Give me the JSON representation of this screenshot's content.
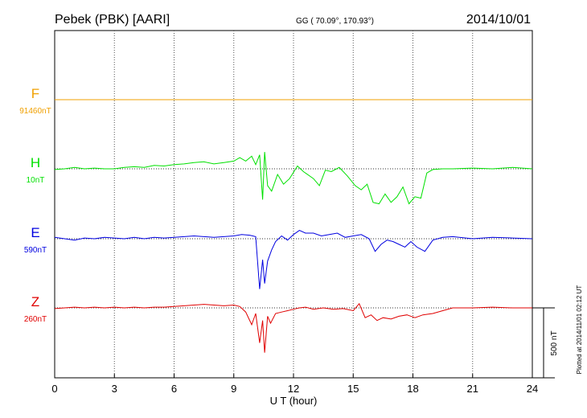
{
  "header": {
    "station": "Pebek (PBK)  [AARI]",
    "coords": "GG ( 70.09°, 170.93°)",
    "date": "2014/10/01"
  },
  "footer": {
    "plotted_note": "Plotted at 2014/11/01 02:12 UT",
    "scale_label": "500 nT"
  },
  "chart_data": {
    "type": "line",
    "title": "Pebek (PBK)  [AARI]",
    "xlabel": "U T (hour)",
    "ylabel": "",
    "xlim": [
      0,
      24
    ],
    "x_ticks": [
      "0",
      "3",
      "6",
      "9",
      "12",
      "15",
      "18",
      "21",
      "24"
    ],
    "scale_bar_nT": 500,
    "grid": true,
    "series": [
      {
        "name": "F",
        "baseline_label": "91460nT",
        "color": "#f0a000",
        "x": [
          0,
          2,
          4,
          6,
          8,
          10,
          12,
          14,
          16,
          18,
          20,
          22,
          24
        ],
        "y": [
          0,
          0,
          0,
          0,
          0,
          0,
          0,
          0,
          0,
          0,
          0,
          0,
          0
        ]
      },
      {
        "name": "H",
        "baseline_label": "10nT",
        "color": "#00e000",
        "x": [
          0,
          0.5,
          1,
          1.5,
          2,
          2.5,
          3,
          3.5,
          4,
          4.5,
          5,
          5.5,
          6,
          6.5,
          7,
          7.5,
          8,
          8.5,
          9,
          9.3,
          9.6,
          9.9,
          10.1,
          10.3,
          10.45,
          10.55,
          10.7,
          10.9,
          11.2,
          11.5,
          11.8,
          12.2,
          12.5,
          13,
          13.3,
          13.6,
          13.9,
          14.3,
          14.7,
          15.1,
          15.4,
          15.7,
          16,
          16.3,
          16.6,
          16.9,
          17.2,
          17.5,
          17.8,
          18.1,
          18.4,
          18.7,
          19,
          19.5,
          20,
          21,
          22,
          23,
          24
        ],
        "y": [
          -5,
          0,
          10,
          0,
          5,
          0,
          0,
          10,
          15,
          10,
          25,
          20,
          30,
          35,
          45,
          50,
          35,
          45,
          55,
          80,
          55,
          90,
          30,
          100,
          -220,
          120,
          -120,
          -160,
          -40,
          -110,
          -70,
          20,
          -20,
          -70,
          -120,
          -10,
          -20,
          10,
          -50,
          -120,
          -150,
          -110,
          -240,
          -250,
          -180,
          -240,
          -200,
          -130,
          -250,
          -200,
          -210,
          -30,
          -5,
          0,
          0,
          5,
          0,
          10,
          0
        ]
      },
      {
        "name": "E",
        "baseline_label": "590nT",
        "color": "#0000e0",
        "x": [
          0,
          0.5,
          1,
          1.5,
          2,
          2.5,
          3,
          3.5,
          4,
          4.5,
          5,
          5.5,
          6,
          6.5,
          7,
          7.5,
          8,
          8.5,
          9,
          9.4,
          9.8,
          10.1,
          10.3,
          10.45,
          10.55,
          10.7,
          10.9,
          11.1,
          11.4,
          11.7,
          12,
          12.3,
          12.6,
          13,
          13.4,
          13.8,
          14.2,
          14.6,
          15,
          15.4,
          15.8,
          16.1,
          16.4,
          16.7,
          17,
          17.3,
          17.6,
          17.9,
          18.2,
          18.6,
          19,
          19.5,
          20,
          21,
          22,
          23,
          24
        ],
        "y": [
          10,
          0,
          -10,
          5,
          0,
          10,
          5,
          0,
          10,
          0,
          10,
          5,
          10,
          15,
          20,
          15,
          10,
          15,
          20,
          30,
          25,
          15,
          -360,
          -150,
          -320,
          -160,
          -80,
          -20,
          20,
          -10,
          30,
          60,
          40,
          40,
          20,
          30,
          40,
          10,
          20,
          30,
          0,
          -90,
          -40,
          -10,
          -20,
          -40,
          -60,
          -20,
          -60,
          -90,
          -10,
          10,
          15,
          0,
          10,
          5,
          0
        ]
      },
      {
        "name": "Z",
        "baseline_label": "260nT",
        "color": "#e00000",
        "x": [
          0,
          0.5,
          1,
          1.5,
          2,
          2.5,
          3,
          3.5,
          4,
          4.5,
          5,
          5.5,
          6,
          6.5,
          7,
          7.5,
          8,
          8.5,
          9,
          9.3,
          9.6,
          9.9,
          10.1,
          10.3,
          10.45,
          10.55,
          10.7,
          10.85,
          11.1,
          11.4,
          11.7,
          12,
          12.3,
          12.6,
          13,
          13.5,
          14,
          14.5,
          15,
          15.3,
          15.6,
          15.9,
          16.2,
          16.5,
          16.9,
          17.3,
          17.7,
          18.1,
          18.5,
          19,
          19.5,
          20,
          21,
          22,
          23,
          24
        ],
        "y": [
          -5,
          0,
          5,
          0,
          5,
          0,
          5,
          0,
          5,
          0,
          5,
          5,
          10,
          15,
          20,
          25,
          20,
          15,
          20,
          10,
          -30,
          -120,
          -40,
          -250,
          -90,
          -320,
          -60,
          -110,
          -40,
          -30,
          -20,
          -10,
          0,
          5,
          -10,
          0,
          -10,
          -5,
          -20,
          30,
          -70,
          -50,
          -90,
          -70,
          -80,
          -60,
          -50,
          -70,
          -50,
          -40,
          -20,
          0,
          0,
          5,
          0,
          0
        ]
      }
    ]
  }
}
